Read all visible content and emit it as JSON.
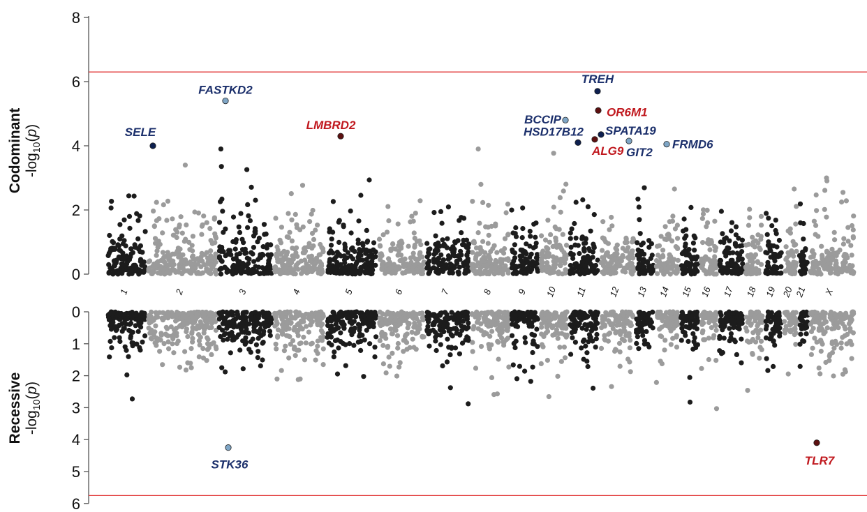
{
  "chart_data": [
    {
      "type": "scatter",
      "panel": "Codominant",
      "ylabel_title": "Codominant",
      "ylabel_expr": {
        "pre": "-log",
        "sub": "10",
        "post": "(p)"
      },
      "ylim": [
        0,
        8
      ],
      "yticks": [
        0,
        2,
        4,
        6,
        8
      ],
      "threshold": 6.3,
      "threshold_color": "#e23b3b",
      "x_chromosomes": [
        "1",
        "2",
        "3",
        "4",
        "5",
        "6",
        "7",
        "8",
        "9",
        "10",
        "11",
        "12",
        "13",
        "14",
        "15",
        "16",
        "17",
        "18",
        "19",
        "20",
        "21",
        "X"
      ],
      "highlights": [
        {
          "gene": "SELE",
          "chrom": "1",
          "value": 4.0,
          "color": "#0d1f4f",
          "label_color": "#1b2f6b"
        },
        {
          "gene": "FASTKD2",
          "chrom": "2",
          "value": 5.4,
          "color": "#7fa6c6",
          "label_color": "#1b2f6b"
        },
        {
          "gene": "LMBRD2",
          "chrom": "5",
          "value": 4.3,
          "color": "#5c1010",
          "label_color": "#c0181e"
        },
        {
          "gene": "BCCIP",
          "chrom": "10",
          "value": 4.8,
          "color": "#7fa6c6",
          "label_color": "#1b2f6b"
        },
        {
          "gene": "HSD17B12",
          "chrom": "11",
          "value": 4.1,
          "color": "#0d1f4f",
          "label_color": "#1b2f6b"
        },
        {
          "gene": "TREH",
          "chrom": "11",
          "value": 5.7,
          "color": "#0d1f4f",
          "label_color": "#1b2f6b"
        },
        {
          "gene": "OR6M1",
          "chrom": "11",
          "value": 5.1,
          "color": "#5c1010",
          "label_color": "#c0181e"
        },
        {
          "gene": "SPATA19",
          "chrom": "11",
          "value": 4.35,
          "color": "#0d1f4f",
          "label_color": "#1b2f6b"
        },
        {
          "gene": "ALG9",
          "chrom": "11",
          "value": 4.2,
          "color": "#5c1010",
          "label_color": "#c0181e"
        },
        {
          "gene": "GIT2",
          "chrom": "12",
          "value": 4.15,
          "color": "#7fa6c6",
          "label_color": "#1b2f6b"
        },
        {
          "gene": "FRMD6",
          "chrom": "14",
          "value": 4.05,
          "color": "#7fa6c6",
          "label_color": "#1b2f6b"
        }
      ]
    },
    {
      "type": "scatter",
      "panel": "Recessive",
      "ylabel_title": "Recessive",
      "ylabel_expr": {
        "pre": "-log",
        "sub": "10",
        "post": "(p)"
      },
      "ylim": [
        0,
        6
      ],
      "yticks": [
        0,
        1,
        2,
        3,
        4,
        5,
        6
      ],
      "y_inverted": true,
      "threshold": 5.75,
      "threshold_color": "#e23b3b",
      "highlights": [
        {
          "gene": "STK36",
          "chrom": "2",
          "value": 4.25,
          "color": "#7fa6c6",
          "label_color": "#1b2f6b"
        },
        {
          "gene": "TLR7",
          "chrom": "X",
          "value": 4.1,
          "color": "#5c1010",
          "label_color": "#c0181e"
        }
      ]
    }
  ],
  "colors": {
    "dark": "#1c1c1c",
    "light": "#9b9b9b",
    "axis": "#555555"
  }
}
